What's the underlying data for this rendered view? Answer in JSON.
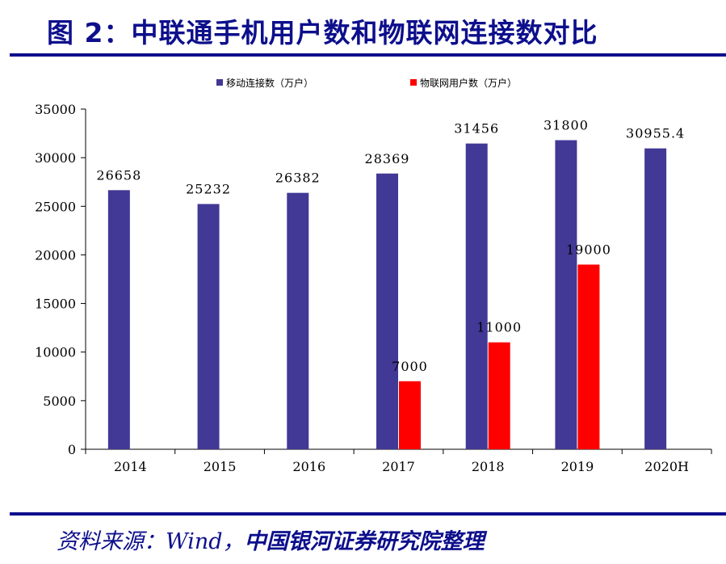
{
  "figure": {
    "title": "图 2：中联通手机用户数和物联网连接数对比",
    "source_prefix": "资料来源：Wind，",
    "source_org": "中国银河证券研究院整理"
  },
  "chart_data": {
    "type": "bar",
    "categories": [
      "2014",
      "2015",
      "2016",
      "2017",
      "2018",
      "2019",
      "2020H"
    ],
    "series": [
      {
        "name": "移动连接数（万户）",
        "color": "#423895",
        "values": [
          26658,
          25232,
          26382,
          28369,
          31456,
          31800,
          30955.4
        ],
        "labels": [
          "26658",
          "25232",
          "26382",
          "28369",
          "31456",
          "31800",
          "30955.4"
        ]
      },
      {
        "name": "物联网用户数（万户）",
        "color": "#ff0000",
        "values": [
          null,
          null,
          null,
          7000,
          11000,
          19000,
          null
        ],
        "labels": [
          "",
          "",
          "",
          "7000",
          "11000",
          "19000",
          ""
        ]
      }
    ],
    "ylim": [
      0,
      35000
    ],
    "yticks": [
      "0",
      "5000",
      "10000",
      "15000",
      "20000",
      "25000",
      "30000",
      "35000"
    ],
    "grid": false,
    "legend": "top"
  }
}
